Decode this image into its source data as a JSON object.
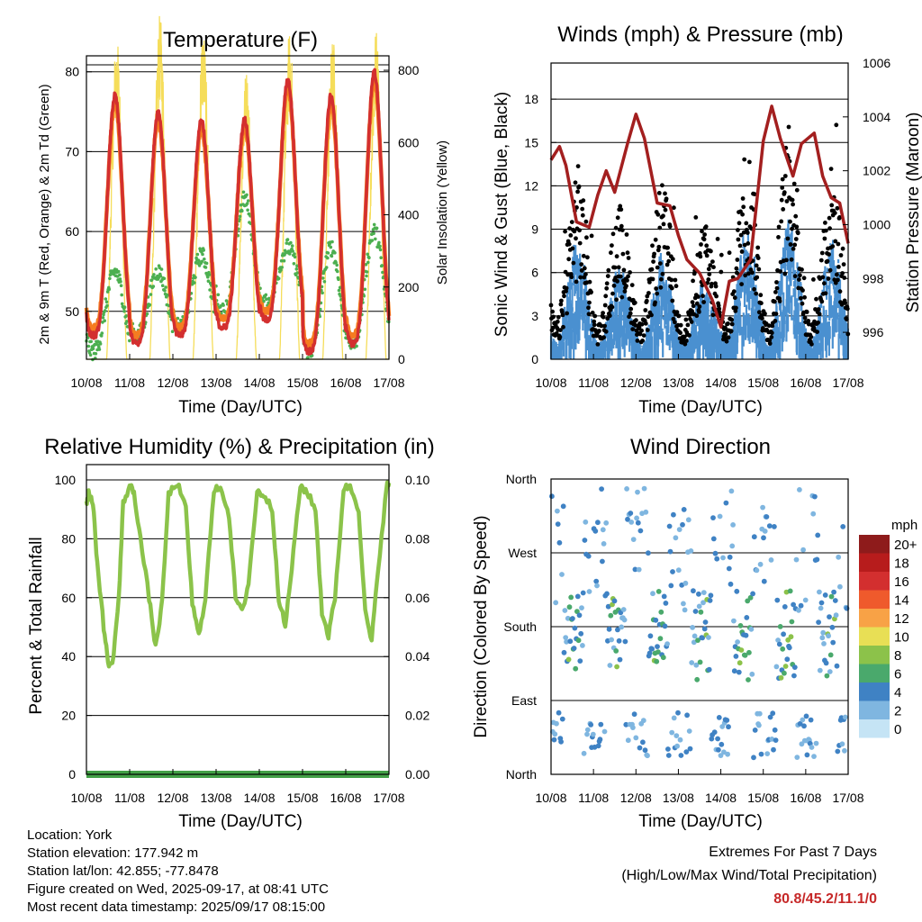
{
  "chart_data": [
    {
      "type": "line",
      "title": "Temperature (F)",
      "xlabel": "Time (Day/UTC)",
      "ylabel": "2m & 9m T (Red, Orange) & 2m Td (Green)",
      "ylabel_right": "Solar Insolation (Yellow)",
      "x_ticks": [
        "10/08",
        "11/08",
        "12/08",
        "13/08",
        "14/08",
        "15/08",
        "16/08",
        "17/08"
      ],
      "y_ticks": [
        50,
        60,
        70,
        80
      ],
      "y_ticks_right": [
        0,
        200,
        400,
        600,
        800
      ],
      "ylim": [
        44,
        82
      ],
      "ylim_right": [
        0,
        840
      ],
      "colors": {
        "t2m": "#d32f2f",
        "t9m": "#f57c20",
        "td2m": "#4caf50",
        "solar": "#f5dd5a"
      },
      "series": [
        {
          "name": "2m T",
          "color": "#d32f2f",
          "daily_min": [
            47,
            46,
            47,
            48,
            49,
            45,
            46,
            51
          ],
          "daily_max": [
            77,
            75,
            74,
            74,
            79,
            77,
            80
          ]
        },
        {
          "name": "9m T",
          "color": "#f57c20",
          "daily_min": [
            48,
            47,
            48,
            49,
            50,
            46,
            47,
            52
          ],
          "daily_max": [
            76,
            74,
            73,
            73,
            78,
            76,
            79
          ]
        },
        {
          "name": "2m Td",
          "color": "#4caf50",
          "daily_min": [
            45,
            47,
            48,
            50,
            51,
            45,
            46,
            51
          ],
          "daily_max": [
            55,
            55,
            57,
            64,
            58,
            58,
            60
          ]
        },
        {
          "name": "Solar",
          "color": "#f5dd5a",
          "daily_peak": [
            780,
            830,
            800,
            700,
            790,
            780,
            790
          ]
        }
      ]
    },
    {
      "type": "scatter",
      "title": "Winds (mph) & Pressure (mb)",
      "xlabel": "Time (Day/UTC)",
      "ylabel": "Sonic Wind & Gust (Blue, Black)",
      "ylabel_right": "Station Pressure (Maroon)",
      "x_ticks": [
        "10/08",
        "11/08",
        "12/08",
        "13/08",
        "14/08",
        "15/08",
        "16/08",
        "17/08"
      ],
      "y_ticks": [
        0,
        3,
        6,
        9,
        12,
        15,
        18
      ],
      "y_ticks_right": [
        996,
        998,
        1000,
        1002,
        1004,
        1006
      ],
      "ylim": [
        0,
        20.5
      ],
      "ylim_right": [
        995,
        1006
      ],
      "colors": {
        "wind": "#4a90d0",
        "gust": "#000000",
        "pressure": "#a31f1f"
      },
      "pressure": {
        "x": [
          0,
          0.2,
          0.35,
          0.6,
          0.9,
          1.1,
          1.3,
          1.5,
          1.8,
          2.0,
          2.2,
          2.5,
          2.8,
          3.0,
          3.2,
          3.5,
          3.8,
          4.0,
          4.2,
          4.4,
          4.7,
          5.0,
          5.2,
          5.4,
          5.7,
          5.9,
          6.2,
          6.4,
          6.6,
          6.8,
          7.0
        ],
        "y": [
          1002.4,
          1002.9,
          1002.2,
          1000.1,
          999.9,
          1001.1,
          1002.0,
          1001.2,
          1003.0,
          1004.1,
          1003.2,
          1000.8,
          1000.7,
          999.6,
          998.7,
          998.2,
          997.2,
          996.2,
          997.9,
          998.0,
          998.7,
          1003.1,
          1004.4,
          1003.2,
          1001.8,
          1003.0,
          1003.4,
          1001.8,
          1001.0,
          1000.8,
          999.3
        ]
      }
    },
    {
      "type": "line",
      "title": "Relative Humidity (%) & Precipitation (in)",
      "xlabel": "Time (Day/UTC)",
      "ylabel": "Percent & Total Rainfall",
      "x_ticks": [
        "10/08",
        "11/08",
        "12/08",
        "13/08",
        "14/08",
        "15/08",
        "16/08",
        "17/08"
      ],
      "y_ticks": [
        0,
        20,
        40,
        60,
        80,
        100
      ],
      "y_ticks_right": [
        "0.00",
        "0.02",
        "0.04",
        "0.06",
        "0.08",
        "0.10"
      ],
      "ylim": [
        0,
        100
      ],
      "ylim_right": [
        0,
        0.1
      ],
      "colors": {
        "rh": "#8bc34a",
        "precip": "#43a047"
      },
      "rh": {
        "x": [
          0,
          0.05,
          0.15,
          0.25,
          0.4,
          0.5,
          0.6,
          0.75,
          0.85,
          1.0,
          1.1,
          1.25,
          1.45,
          1.6,
          1.75,
          1.9,
          2.1,
          2.3,
          2.45,
          2.6,
          2.75,
          2.95,
          3.1,
          3.3,
          3.45,
          3.6,
          3.75,
          3.95,
          4.1,
          4.3,
          4.45,
          4.6,
          4.75,
          4.95,
          5.1,
          5.3,
          5.45,
          5.6,
          5.75,
          5.95,
          6.1,
          6.3,
          6.45,
          6.6,
          6.75,
          6.95,
          7.0
        ],
        "y": [
          92,
          96,
          92,
          72,
          50,
          38,
          37,
          60,
          92,
          98,
          96,
          80,
          60,
          43,
          58,
          95,
          99,
          90,
          58,
          47,
          60,
          96,
          98,
          88,
          60,
          55,
          65,
          96,
          95,
          90,
          60,
          50,
          70,
          98,
          96,
          90,
          55,
          47,
          60,
          97,
          98,
          90,
          55,
          45,
          70,
          98,
          99
        ]
      },
      "precip_total": 0.0
    },
    {
      "type": "scatter",
      "title": "Wind Direction",
      "xlabel": "Time (Day/UTC)",
      "ylabel": "Direction (Colored By Speed)",
      "x_ticks": [
        "10/08",
        "11/08",
        "12/08",
        "13/08",
        "14/08",
        "15/08",
        "16/08",
        "17/08"
      ],
      "y_ticks": [
        "North",
        "East",
        "South",
        "West",
        "North"
      ],
      "ylim": [
        0,
        360
      ],
      "legend": {
        "title": "mph",
        "labels": [
          "20+",
          "18",
          "16",
          "14",
          "12",
          "10",
          "8",
          "6",
          "4",
          "2",
          "0"
        ],
        "colors": [
          "#8e1b1b",
          "#b71c1c",
          "#d32f2f",
          "#ef5a2c",
          "#f8a246",
          "#e8df55",
          "#8cc24a",
          "#4aa96c",
          "#3f82c4",
          "#7fb6e0",
          "#c5e4f5"
        ]
      }
    }
  ],
  "footer": {
    "location": "Location: York",
    "elevation": "Station elevation: 177.942 m",
    "latlon": "Station lat/lon: 42.855; -77.8478",
    "created": "Figure created on Wed, 2025-09-17, at 08:41 UTC",
    "recent": "Most recent data timestamp: 2025/09/17 08:15:00"
  },
  "extremes": {
    "title": "Extremes For Past 7 Days",
    "subtitle": "(High/Low/Max Wind/Total Precipitation)",
    "values": "80.8/45.2/11.1/0"
  }
}
